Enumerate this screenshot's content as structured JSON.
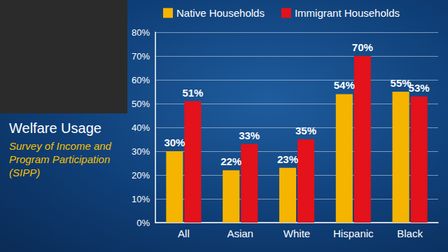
{
  "chart_data": {
    "type": "bar",
    "title": "Welfare Usage",
    "subtitle": "Survey of Income and Program Participation (SIPP)",
    "categories": [
      "All",
      "Asian",
      "White",
      "Hispanic",
      "Black"
    ],
    "series": [
      {
        "name": "Native Households",
        "color": "#f5b400",
        "values": [
          30,
          22,
          23,
          54,
          55
        ],
        "value_labels": [
          "30%",
          "22%",
          "23%",
          "54%",
          "55%"
        ]
      },
      {
        "name": "Immigrant Households",
        "color": "#e3121b",
        "values": [
          51,
          33,
          35,
          70,
          53
        ],
        "value_labels": [
          "51%",
          "33%",
          "35%",
          "70%",
          "53%"
        ]
      }
    ],
    "ylim": [
      0,
      80
    ],
    "yticks": [
      {
        "value": 0,
        "label": "0%"
      },
      {
        "value": 10,
        "label": "10%"
      },
      {
        "value": 20,
        "label": "20%"
      },
      {
        "value": 30,
        "label": "30%"
      },
      {
        "value": 40,
        "label": "40%"
      },
      {
        "value": 50,
        "label": "50%"
      },
      {
        "value": 60,
        "label": "60%"
      },
      {
        "value": 70,
        "label": "70%"
      },
      {
        "value": 80,
        "label": "80%"
      }
    ],
    "grid": true,
    "legend": "top",
    "data_labels": true
  }
}
